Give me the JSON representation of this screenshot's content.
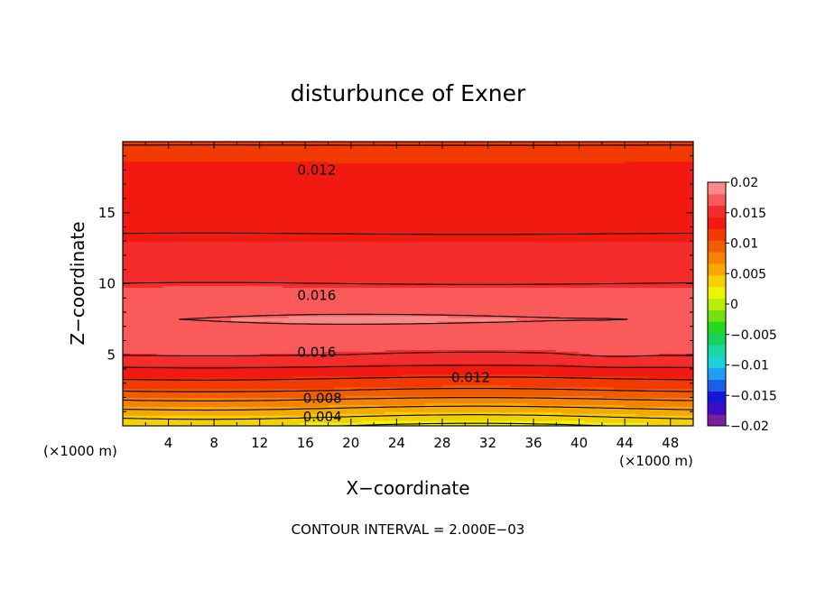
{
  "chart_data": {
    "type": "heatmap",
    "title": "disturbunce of Exner",
    "xlabel": "X−coordinate",
    "ylabel": "Z−coordinate",
    "x_unit": "(×1000 m)",
    "z_unit": "(×1000 m)",
    "xlim": [
      0,
      50
    ],
    "ylim": [
      0,
      20
    ],
    "x_ticks": [
      4,
      8,
      12,
      16,
      20,
      24,
      28,
      32,
      36,
      40,
      44,
      48
    ],
    "y_ticks": [
      5,
      10,
      15
    ],
    "footer": "CONTOUR INTERVAL = 2.000E−03",
    "contour_interval": 0.002,
    "colorbar": {
      "min": -0.02,
      "max": 0.02,
      "tick_labels": [
        "0.02",
        "0.015",
        "0.01",
        "0.005",
        "0",
        "−0.005",
        "−0.01",
        "−0.015",
        "−0.02"
      ],
      "tick_values": [
        0.02,
        0.015,
        0.01,
        0.005,
        0,
        -0.005,
        -0.01,
        -0.015,
        -0.02
      ],
      "colors": [
        "#7a1fa2",
        "#3d0cc4",
        "#1616d6",
        "#1b5fe8",
        "#1e9ef0",
        "#1ccfd9",
        "#18d7a0",
        "#19d25a",
        "#22d91e",
        "#70e010",
        "#b8ec0a",
        "#eef500",
        "#f5d000",
        "#f5a800",
        "#f58200",
        "#f25c00",
        "#f23a00",
        "#f21a10",
        "#f52c2c",
        "#fa5a5a",
        "#fd8a8a"
      ]
    },
    "contour_labels": [
      {
        "text": "0.012",
        "x": 17.0,
        "z": 18.05
      },
      {
        "text": "0.016",
        "x": 17.0,
        "z": 9.25
      },
      {
        "text": "0.016",
        "x": 17.0,
        "z": 5.25
      },
      {
        "text": "0.012",
        "x": 30.5,
        "z": 3.45
      },
      {
        "text": "0.008",
        "x": 17.5,
        "z": 2.0
      },
      {
        "text": "0.004",
        "x": 17.5,
        "z": 0.7
      }
    ]
  }
}
